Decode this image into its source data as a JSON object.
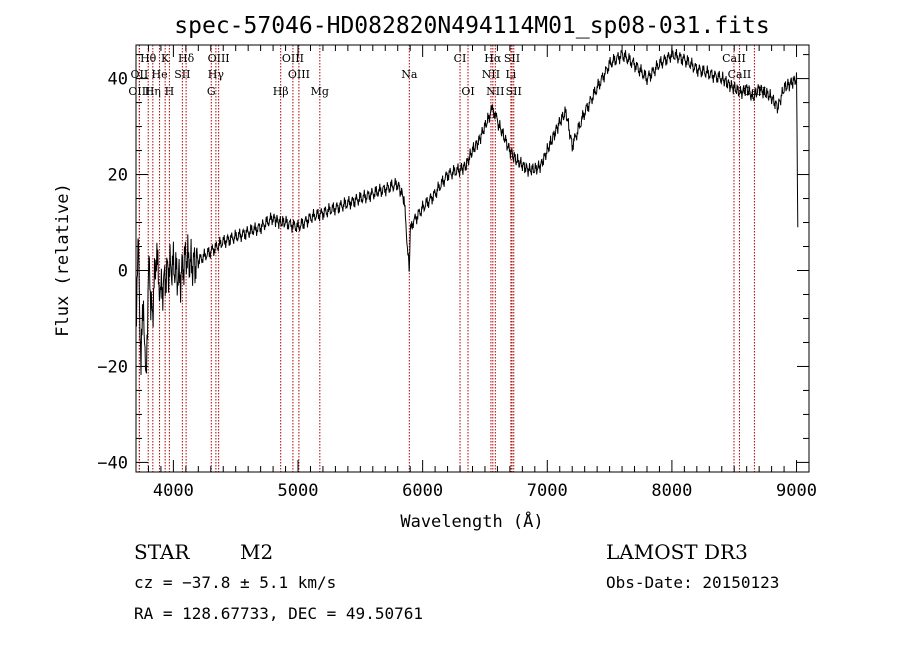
{
  "chart_data": {
    "type": "line",
    "title": "spec-57046-HD082820N494114M01_sp08-031.fits",
    "xlabel": "Wavelength (Å)",
    "ylabel": "Flux (relative)",
    "xlim": [
      3700,
      9100
    ],
    "ylim": [
      -42,
      47
    ],
    "xticks": [
      4000,
      5000,
      6000,
      7000,
      8000,
      9000
    ],
    "yticks": [
      -40,
      -20,
      0,
      20,
      40
    ],
    "xtick_labels": [
      "4000",
      "5000",
      "6000",
      "7000",
      "8000",
      "9000"
    ],
    "ytick_labels": [
      "−40",
      "−20",
      "0",
      "20",
      "40"
    ],
    "series": [
      {
        "x": [
          3700,
          3720,
          3740,
          3760,
          3780,
          3800,
          3830,
          3860,
          3900,
          3950,
          4000,
          4050,
          4100,
          4150,
          4200,
          4300,
          4400,
          4500,
          4600,
          4700,
          4800,
          4850,
          4900,
          5000,
          5100,
          5200,
          5300,
          5400,
          5500,
          5600,
          5700,
          5800,
          5850,
          5890,
          5893,
          5900,
          5920,
          6000,
          6100,
          6200,
          6300,
          6350,
          6400,
          6450,
          6500,
          6550,
          6563,
          6600,
          6650,
          6700,
          6750,
          6800,
          6850,
          6900,
          6950,
          7000,
          7050,
          7100,
          7150,
          7200,
          7300,
          7400,
          7500,
          7600,
          7700,
          7800,
          7900,
          8000,
          8100,
          8200,
          8300,
          8400,
          8450,
          8500,
          8550,
          8600,
          8650,
          8700,
          8750,
          8800,
          8850,
          8900,
          8950,
          9000,
          9010
        ],
        "y": [
          -10,
          5,
          -20,
          -5,
          -26,
          2,
          -10,
          3,
          -5,
          0,
          1,
          -2,
          3,
          1,
          2,
          4,
          6,
          7,
          8,
          9,
          11,
          10,
          10,
          9,
          11,
          12,
          13,
          14,
          15,
          16,
          17,
          18,
          15,
          1,
          0,
          8,
          10,
          13,
          16,
          20,
          21,
          22,
          25,
          27,
          30,
          33,
          34,
          31,
          28,
          25,
          23,
          22,
          21,
          21,
          22,
          25,
          28,
          31,
          33,
          26,
          33,
          38,
          43,
          45,
          43,
          40,
          43,
          45,
          44,
          42,
          41,
          40,
          39,
          38,
          37,
          38,
          36,
          38,
          37,
          36,
          34,
          38,
          39,
          40,
          9
        ]
      }
    ],
    "grid": false,
    "spectral_lines": [
      {
        "label": "Hθ",
        "wl": 3798,
        "row": 1
      },
      {
        "label": "K",
        "wl": 3934,
        "row": 1
      },
      {
        "label": "Hδ",
        "wl": 4102,
        "row": 1
      },
      {
        "label": "OIII",
        "wl": 4363,
        "row": 1
      },
      {
        "label": "OIII",
        "wl": 4959,
        "row": 1
      },
      {
        "label": "CI",
        "wl": 6300,
        "row": 1
      },
      {
        "label": "Hα",
        "wl": 6563,
        "row": 1
      },
      {
        "label": "SII",
        "wl": 6717,
        "row": 1
      },
      {
        "label": "CaII",
        "wl": 8498,
        "row": 1
      },
      {
        "label": "OII",
        "wl": 3727,
        "row": 2
      },
      {
        "label": "He",
        "wl": 3889,
        "row": 2
      },
      {
        "label": "SII",
        "wl": 4072,
        "row": 2
      },
      {
        "label": "Hγ",
        "wl": 4341,
        "row": 2
      },
      {
        "label": "OIII",
        "wl": 5007,
        "row": 2
      },
      {
        "label": "Na",
        "wl": 5893,
        "row": 2
      },
      {
        "label": "NII",
        "wl": 6548,
        "row": 2
      },
      {
        "label": "Li",
        "wl": 6708,
        "row": 2
      },
      {
        "label": "CaII",
        "wl": 8542,
        "row": 2
      },
      {
        "label": "OIII",
        "wl": 3727,
        "row": 3
      },
      {
        "label": "Hη",
        "wl": 3835,
        "row": 3
      },
      {
        "label": "H",
        "wl": 3968,
        "row": 3
      },
      {
        "label": "G",
        "wl": 4304,
        "row": 3
      },
      {
        "label": "Hβ",
        "wl": 4861,
        "row": 3
      },
      {
        "label": "Mg",
        "wl": 5175,
        "row": 3
      },
      {
        "label": "OI",
        "wl": 6364,
        "row": 3
      },
      {
        "label": "NII",
        "wl": 6583,
        "row": 3
      },
      {
        "label": "SII",
        "wl": 6731,
        "row": 3
      },
      {
        "label": "CaII",
        "wl": 8662,
        "row": 3
      }
    ],
    "line_color": "#000000",
    "marker_color": "#b00000"
  },
  "info": {
    "object_class": "STAR",
    "subclass": "M2",
    "survey": "LAMOST DR3",
    "cz": "cz = −37.8 ± 5.1 km/s",
    "obs_date": "Obs-Date: 20150123",
    "coords": "RA = 128.67733, DEC =  49.50761"
  }
}
